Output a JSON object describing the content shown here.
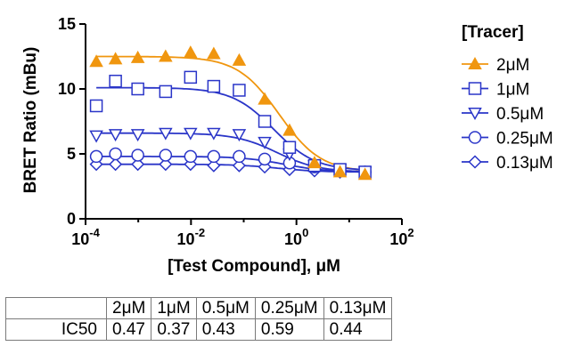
{
  "chart_data": {
    "type": "scatter",
    "xlabel": "[Test Compound], μM",
    "ylabel": "BRET Ratio (mBu)",
    "xscale": "log",
    "xlim": [
      0.0001,
      100
    ],
    "ylim": [
      0,
      15
    ],
    "x_ticks": [
      {
        "value": 0.0001,
        "base": "10",
        "exp": "-4"
      },
      {
        "value": 0.01,
        "base": "10",
        "exp": "-2"
      },
      {
        "value": 1,
        "base": "10",
        "exp": "0"
      },
      {
        "value": 100,
        "base": "10",
        "exp": "2"
      }
    ],
    "y_ticks": [
      {
        "value": 0,
        "label": "0"
      },
      {
        "value": 5,
        "label": "5"
      },
      {
        "value": 10,
        "label": "10"
      },
      {
        "value": 15,
        "label": "15"
      }
    ],
    "grid": false,
    "legend_position": "right",
    "legend_title": "[Tracer]",
    "series": [
      {
        "name": "2μM",
        "marker": "triangle-up-filled",
        "color": "#f0960f",
        "ic50": 0.47,
        "top": 12.5,
        "bottom": 3.6,
        "x": [
          0.00016,
          0.00037,
          0.00098,
          0.0033,
          0.0098,
          0.027,
          0.082,
          0.25,
          0.74,
          2.2,
          6.7,
          20
        ],
        "y": [
          12.1,
          12.3,
          12.4,
          12.5,
          12.8,
          12.7,
          12.2,
          9.2,
          6.8,
          4.3,
          3.6,
          3.4
        ]
      },
      {
        "name": "1μM",
        "marker": "square-open",
        "color": "#2a35c8",
        "ic50": 0.37,
        "top": 10.1,
        "bottom": 3.7,
        "x": [
          0.00016,
          0.00037,
          0.00098,
          0.0033,
          0.0098,
          0.027,
          0.082,
          0.25,
          0.74,
          2.2,
          6.7,
          20
        ],
        "y": [
          8.7,
          10.6,
          10.0,
          9.8,
          10.9,
          10.2,
          9.9,
          7.5,
          5.5,
          4.1,
          3.8,
          3.6
        ]
      },
      {
        "name": "0.5μM",
        "marker": "triangle-down-open",
        "color": "#2a35c8",
        "ic50": 0.43,
        "top": 6.6,
        "bottom": 3.6,
        "x": [
          0.00016,
          0.00037,
          0.00098,
          0.0033,
          0.0098,
          0.027,
          0.082,
          0.25,
          0.74,
          2.2,
          6.7,
          20
        ],
        "y": [
          6.4,
          6.5,
          6.5,
          6.6,
          6.6,
          6.6,
          6.5,
          5.9,
          5.0,
          4.1,
          3.8,
          3.6
        ]
      },
      {
        "name": "0.25μM",
        "marker": "circle-open",
        "color": "#2a35c8",
        "ic50": 0.59,
        "top": 4.8,
        "bottom": 3.6,
        "x": [
          0.00016,
          0.00037,
          0.00098,
          0.0033,
          0.0098,
          0.027,
          0.082,
          0.25,
          0.74,
          2.2,
          6.7,
          20
        ],
        "y": [
          4.8,
          5.0,
          4.9,
          4.9,
          4.8,
          4.8,
          4.8,
          4.6,
          4.3,
          4.0,
          3.7,
          3.6
        ]
      },
      {
        "name": "0.13μM",
        "marker": "diamond-open",
        "color": "#2a35c8",
        "ic50": 0.44,
        "top": 4.2,
        "bottom": 3.6,
        "x": [
          0.00016,
          0.00037,
          0.00098,
          0.0033,
          0.0098,
          0.027,
          0.082,
          0.25,
          0.74,
          2.2,
          6.7,
          20
        ],
        "y": [
          4.2,
          4.2,
          4.2,
          4.2,
          4.2,
          4.1,
          4.1,
          4.0,
          3.8,
          3.7,
          3.6,
          3.6
        ]
      }
    ]
  },
  "table": {
    "columns": [
      "2μM",
      "1μM",
      "0.5μM",
      "0.25μM",
      "0.13μM"
    ],
    "row_label": "IC50",
    "values": [
      "0.47",
      "0.37",
      "0.43",
      "0.59",
      "0.44"
    ]
  }
}
